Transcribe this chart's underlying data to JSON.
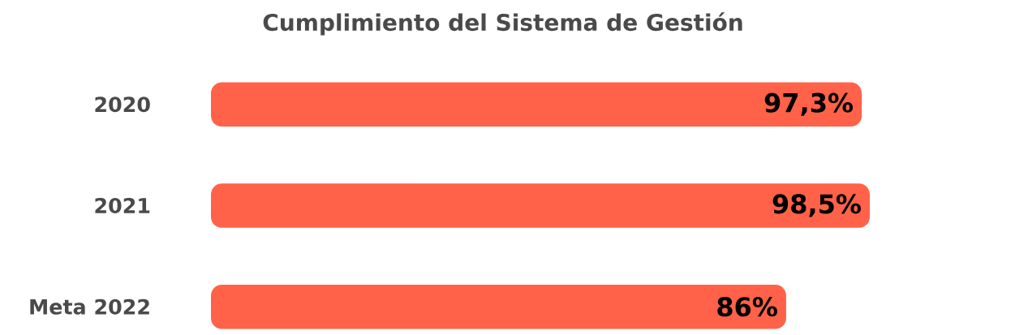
{
  "chart_data": {
    "type": "bar",
    "orientation": "horizontal",
    "title": "Cumplimiento del Sistema de Gestión",
    "categories": [
      "2020",
      "2021",
      "Meta 2022"
    ],
    "values": [
      97.3,
      98.5,
      86
    ],
    "value_labels": [
      "97,3%",
      "98,5%",
      "86%"
    ],
    "color": "#ff6248",
    "tick_labels": "y"
  }
}
